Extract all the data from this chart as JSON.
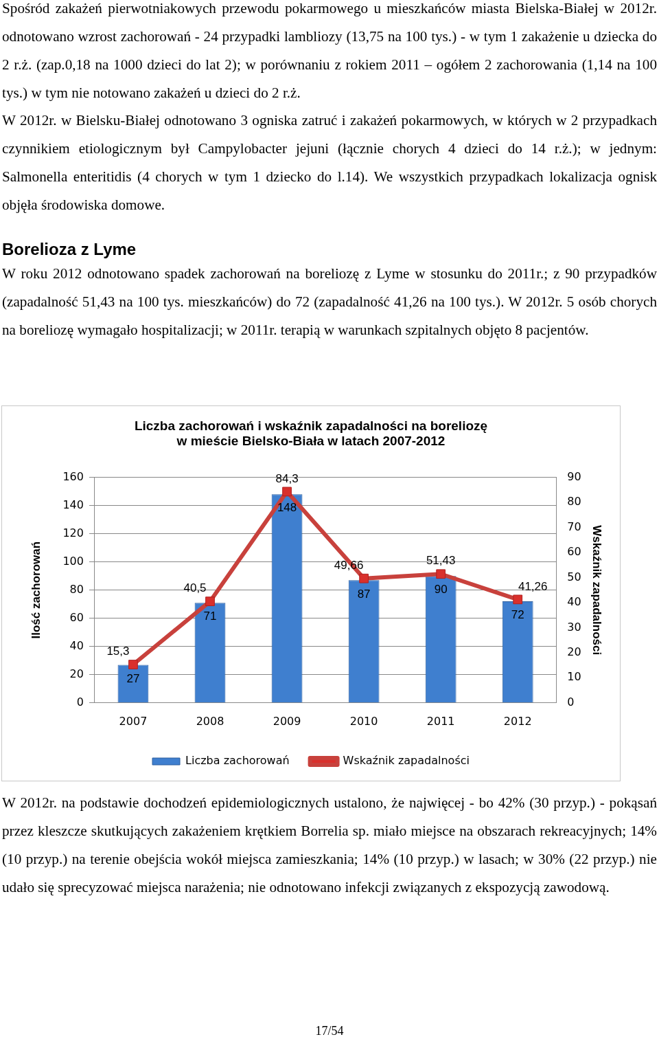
{
  "chart_data": {
    "type": "bar",
    "title": "Liczba zachorowań i wskaźnik zapadalności na boreliozę\nw mieście Bielsko-Biała w latach 2007-2012",
    "ylabel": "Ilość zachorowań",
    "y2label": "Wskaźnik zapadalności",
    "categories": [
      "2007",
      "2008",
      "2009",
      "2010",
      "2011",
      "2012"
    ],
    "series": [
      {
        "name": "Liczba zachorowań",
        "color": "#3f7fcf",
        "values": [
          27,
          71,
          148,
          87,
          90,
          72
        ],
        "value_labels": [
          "27",
          "71",
          "148",
          "87",
          "90",
          "72"
        ]
      },
      {
        "name": "Wskaźnik zapadalności",
        "type": "line",
        "axis": "y2",
        "color": "#c8413c",
        "values": [
          15.3,
          40.5,
          84.3,
          49.66,
          51.43,
          41.26
        ],
        "value_labels": [
          "15,3",
          "40,5",
          "84,3",
          "49,66",
          "51,43",
          "41,26"
        ]
      }
    ],
    "ylim": [
      0,
      160
    ],
    "yticks": [
      0,
      20,
      40,
      60,
      80,
      100,
      120,
      140,
      160
    ],
    "y2lim": [
      0,
      90
    ],
    "y2ticks": [
      0,
      10,
      20,
      30,
      40,
      50,
      60,
      70,
      80,
      90
    ],
    "grid": "y",
    "legend": "bottom",
    "marker": "square",
    "line_style": "solid",
    "annotations": [
      "Spośród zakażeń pierwotniakowych przewodu pokarmowego u mieszkańców miasta Bielska-Białej w 2012r. odnotowano wzrost zachorowań - 24 przypadki lambliozy (13,75 na 100 tys.) - w tym 1 zakażenie u dziecka do 2 r.ż. (zap.0,18 na 1000 dzieci do lat 2); w porównaniu z rokiem 2011 – ogółem 2 zachorowania (1,14 na 100 tys.) w tym nie notowano zakażeń u dzieci do 2 r.ż.",
      "W 2012r. w Bielsku-Białej odnotowano 3 ogniska zatruć i zakażeń pokarmowych, w których w 2 przypadkach czynnikiem etiologicznym był Campylobacter jejuni (łącznie chorych 4 dzieci do 14 r.ż.); w jednym: Salmonella enteritidis (4 chorych w tym 1 dziecko do l.14). We wszystkich przypadkach lokalizacja ognisk objęła środowiska domowe.",
      "Borelioza z Lyme",
      "W roku 2012 odnotowano spadek zachorowań na boreliozę z Lyme w stosunku do 2011r.; z 90 przypadków (zapadalność 51,43 na 100 tys. mieszkańców) do 72 (zapadalność 41,26 na 100 tys.). W 2012r. 5 osób chorych na boreliozę wymagało hospitalizacji; w 2011r. terapią w warunkach szpitalnych objęto 8 pacjentów.",
      "W 2012r. na podstawie dochodzeń epidemiologicznych ustalono, że najwięcej - bo 42% (30 przyp.) - pokąsań przez kleszcze skutkujących zakażeniem krętkiem Borrelia sp. miało miejsce na obszarach rekreacyjnych; 14% (10 przyp.) na terenie obejścia wokół miejsca zamieszkania; 14% (10 przyp.) w lasach; w 30% (22 przyp.) nie udało się sprecyzować miejsca narażenia; nie odnotowano infekcji związanych z ekspozycją zawodową.",
      "17/54"
    ]
  }
}
